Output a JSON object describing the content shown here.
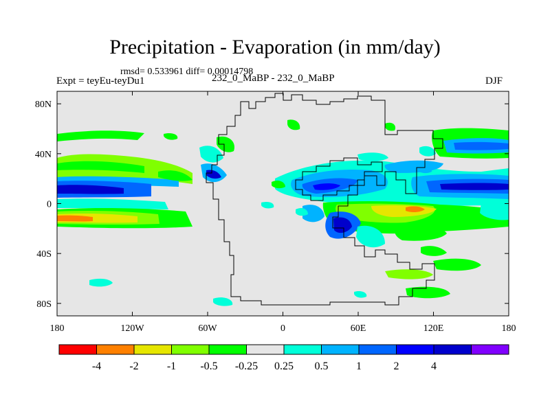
{
  "header": {
    "title": "Precipitation - Evaporation (in mm/day)",
    "stats": "rmsd= 0.533961 diff= 0.00014798",
    "experiment": "Expt = teyEu-teyDu1",
    "case": "232_0_MaBP - 232_0_MaBP",
    "season": "DJF"
  },
  "map": {
    "projection": "cylindrical equidistant",
    "lon_range": [
      -180,
      180
    ],
    "lat_range": [
      -90,
      90
    ],
    "x_ticks": [
      {
        "value": -180,
        "label": "180"
      },
      {
        "value": -120,
        "label": "120W"
      },
      {
        "value": -60,
        "label": "60W"
      },
      {
        "value": 0,
        "label": "0"
      },
      {
        "value": 60,
        "label": "60E"
      },
      {
        "value": 120,
        "label": "120E"
      },
      {
        "value": 180,
        "label": "180"
      }
    ],
    "y_ticks": [
      {
        "value": 80,
        "label": "80N"
      },
      {
        "value": 40,
        "label": "40N"
      },
      {
        "value": 0,
        "label": "0"
      },
      {
        "value": -40,
        "label": "40S"
      },
      {
        "value": -80,
        "label": "80S"
      }
    ],
    "background_color": "#e6e6e6"
  },
  "colorbar": {
    "colors": [
      "#ff0000",
      "#ff8000",
      "#e6e600",
      "#80ff00",
      "#00ff00",
      "#e6e6e6",
      "#00ffd9",
      "#00b3ff",
      "#0066ff",
      "#0000ff",
      "#0000cc",
      "#8000ff"
    ],
    "labels": [
      "-4",
      "-2",
      "-1",
      "-0.5",
      "-0.25",
      "0.25",
      "0.5",
      "1",
      "2",
      "4"
    ]
  }
}
